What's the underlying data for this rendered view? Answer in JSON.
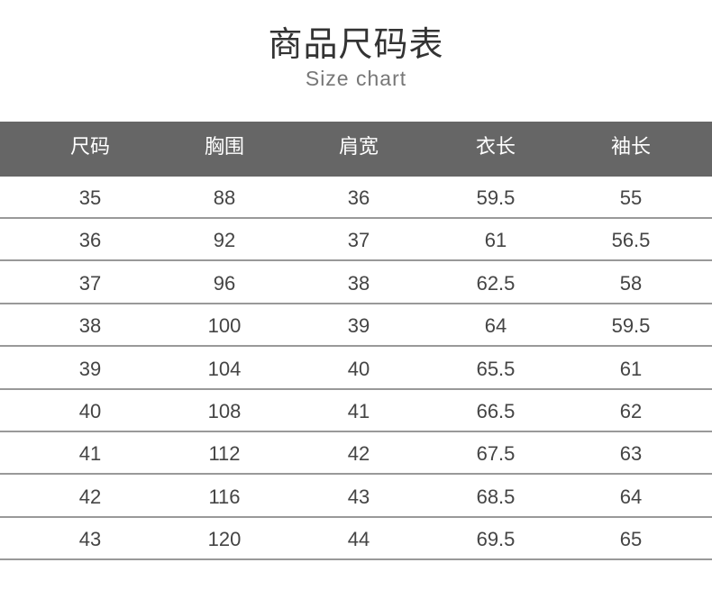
{
  "title": "商品尺码表",
  "subtitle": "Size chart",
  "columns": [
    "尺码",
    "胸围",
    "肩宽",
    "衣长",
    "袖长"
  ],
  "rows": [
    [
      "35",
      "88",
      "36",
      "59.5",
      "55"
    ],
    [
      "36",
      "92",
      "37",
      "61",
      "56.5"
    ],
    [
      "37",
      "96",
      "38",
      "62.5",
      "58"
    ],
    [
      "38",
      "100",
      "39",
      "64",
      "59.5"
    ],
    [
      "39",
      "104",
      "40",
      "65.5",
      "61"
    ],
    [
      "40",
      "108",
      "41",
      "66.5",
      "62"
    ],
    [
      "41",
      "112",
      "42",
      "67.5",
      "63"
    ],
    [
      "42",
      "116",
      "43",
      "68.5",
      "64"
    ],
    [
      "43",
      "120",
      "44",
      "69.5",
      "65"
    ]
  ],
  "colors": {
    "header_bg": "#666666",
    "divider": "#999999",
    "text": "#444444"
  }
}
